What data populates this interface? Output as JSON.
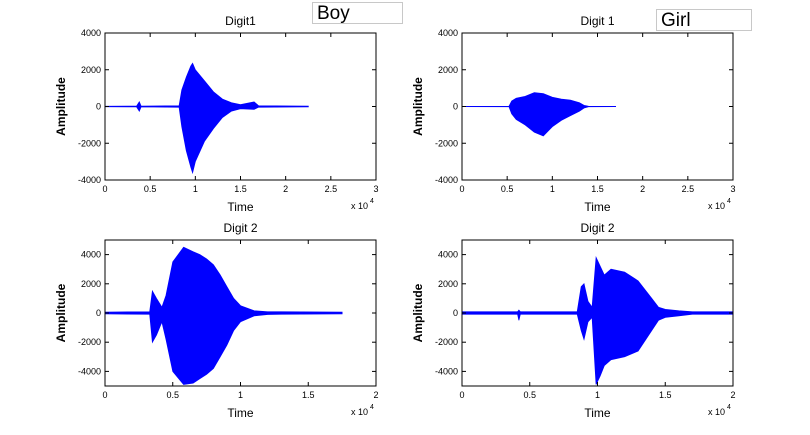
{
  "labels": {
    "boy": "Boy",
    "girl": "Girl"
  },
  "colors": {
    "waveform": "#0000ff",
    "axes": "#000000",
    "background": "#ffffff"
  },
  "chart_data": [
    {
      "type": "line",
      "title": "Digit1",
      "xlabel": "Time",
      "ylabel": "Amplitude",
      "xlim": [
        0,
        30000
      ],
      "ylim": [
        -4000,
        4000
      ],
      "x_exponent_label": "x 10",
      "x_exponent": "4",
      "xticks": [
        0,
        5000,
        10000,
        15000,
        20000,
        25000,
        30000
      ],
      "xtick_labels": [
        "0",
        "0.5",
        "1",
        "1.5",
        "2",
        "2.5",
        "3"
      ],
      "yticks": [
        -4000,
        -2000,
        0,
        2000,
        4000
      ],
      "ytick_labels": [
        "-4000",
        "-2000",
        "0",
        "2000",
        "4000"
      ],
      "grid": false,
      "series": [
        {
          "x": [
            0,
            3500,
            3800,
            4000,
            8200,
            8500,
            9000,
            9500,
            9700,
            10000,
            11000,
            12000,
            13000,
            14000,
            15000,
            16500,
            17000,
            22500
          ],
          "upper": [
            10,
            20,
            250,
            20,
            40,
            900,
            1600,
            2200,
            2350,
            2000,
            1400,
            800,
            400,
            200,
            100,
            250,
            40,
            20
          ],
          "lower": [
            -10,
            -20,
            -250,
            -20,
            -40,
            -1100,
            -2400,
            -3300,
            -3600,
            -3000,
            -1900,
            -1200,
            -600,
            -250,
            -120,
            -150,
            -40,
            -20
          ]
        }
      ]
    },
    {
      "type": "line",
      "title": "Digit 1",
      "xlabel": "Time",
      "ylabel": "Amplitude",
      "xlim": [
        0,
        30000
      ],
      "ylim": [
        -4000,
        4000
      ],
      "x_exponent_label": "x 10",
      "x_exponent": "4",
      "xticks": [
        0,
        5000,
        10000,
        15000,
        20000,
        25000,
        30000
      ],
      "xtick_labels": [
        "0",
        "0.5",
        "1",
        "1.5",
        "2",
        "2.5",
        "3"
      ],
      "yticks": [
        -4000,
        -2000,
        0,
        2000,
        4000
      ],
      "ytick_labels": [
        "-4000",
        "-2000",
        "0",
        "2000",
        "4000"
      ],
      "grid": false,
      "series": [
        {
          "x": [
            0,
            5200,
            5500,
            6000,
            7000,
            8000,
            9000,
            10000,
            11000,
            12000,
            13000,
            13500,
            14000,
            17000
          ],
          "upper": [
            5,
            10,
            300,
            450,
            550,
            750,
            700,
            500,
            400,
            350,
            200,
            60,
            10,
            5
          ],
          "lower": [
            -5,
            -10,
            -400,
            -700,
            -1000,
            -1400,
            -1600,
            -1100,
            -750,
            -500,
            -250,
            -80,
            -10,
            -5
          ]
        }
      ]
    },
    {
      "type": "line",
      "title": "Digit 2",
      "xlabel": "Time",
      "ylabel": "Amplitude",
      "xlim": [
        0,
        20000
      ],
      "ylim": [
        -5000,
        5000
      ],
      "x_exponent_label": "x 10",
      "x_exponent": "4",
      "xticks": [
        0,
        5000,
        10000,
        15000,
        20000
      ],
      "xtick_labels": [
        "0",
        "0.5",
        "1",
        "1.5",
        "2"
      ],
      "yticks": [
        -4000,
        -2000,
        0,
        2000,
        4000
      ],
      "ytick_labels": [
        "-4000",
        "-2000",
        "0",
        "2000",
        "4000"
      ],
      "grid": false,
      "series": [
        {
          "x": [
            0,
            3300,
            3500,
            3800,
            4200,
            4500,
            5000,
            5800,
            6500,
            7000,
            7500,
            8000,
            8500,
            9000,
            9500,
            10000,
            11000,
            12000,
            13000,
            17500
          ],
          "upper": [
            60,
            80,
            1500,
            1000,
            400,
            1200,
            3500,
            4500,
            4200,
            4000,
            3700,
            3300,
            2600,
            1800,
            1000,
            500,
            150,
            80,
            80,
            60
          ],
          "lower": [
            -60,
            -80,
            -2000,
            -1500,
            -600,
            -1800,
            -4000,
            -4900,
            -4800,
            -4500,
            -4200,
            -3800,
            -3000,
            -2200,
            -1200,
            -600,
            -200,
            -100,
            -80,
            -60
          ]
        }
      ]
    },
    {
      "type": "line",
      "title": "Digit  2",
      "xlabel": "Time",
      "ylabel": "Amplitude",
      "xlim": [
        0,
        20000
      ],
      "ylim": [
        -5000,
        5000
      ],
      "x_exponent_label": "x 10",
      "x_exponent": "4",
      "xticks": [
        0,
        5000,
        10000,
        15000,
        20000
      ],
      "xtick_labels": [
        "0",
        "0.5",
        "1",
        "1.5",
        "2"
      ],
      "yticks": [
        -4000,
        -2000,
        0,
        2000,
        4000
      ],
      "ytick_labels": [
        "-4000",
        "-2000",
        "0",
        "2000",
        "4000"
      ],
      "grid": false,
      "series": [
        {
          "x": [
            0,
            4100,
            4200,
            4300,
            8500,
            8800,
            9000,
            9300,
            9600,
            9900,
            10200,
            10500,
            11000,
            12000,
            13000,
            14000,
            14500,
            15000,
            16000,
            17000,
            20000
          ],
          "upper": [
            80,
            80,
            200,
            80,
            80,
            1800,
            2000,
            800,
            400,
            3800,
            3200,
            2600,
            3000,
            2800,
            2200,
            1000,
            400,
            250,
            150,
            80,
            80
          ],
          "lower": [
            -80,
            -80,
            -500,
            -80,
            -80,
            -1200,
            -1800,
            -600,
            -300,
            -4900,
            -4300,
            -3600,
            -3200,
            -3000,
            -2600,
            -1200,
            -500,
            -300,
            -200,
            -80,
            -80
          ]
        }
      ]
    }
  ]
}
